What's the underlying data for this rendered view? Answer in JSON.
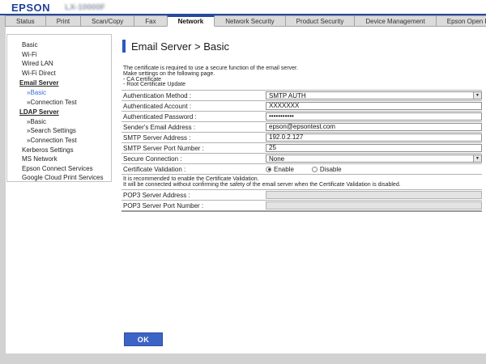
{
  "window": {
    "brand": "EPSON",
    "model": "LX-10000F"
  },
  "tabs": {
    "items": [
      {
        "label": "Status",
        "active": false
      },
      {
        "label": "Print",
        "active": false
      },
      {
        "label": "Scan/Copy",
        "active": false
      },
      {
        "label": "Fax",
        "active": false
      },
      {
        "label": "Network",
        "active": true
      },
      {
        "label": "Network Security",
        "active": false
      },
      {
        "label": "Product Security",
        "active": false
      },
      {
        "label": "Device Management",
        "active": false
      },
      {
        "label": "Epson Open Platform",
        "active": false
      }
    ]
  },
  "sidebar": {
    "items": [
      {
        "label": "Basic",
        "type": "link",
        "active": false
      },
      {
        "label": "Wi-Fi",
        "type": "link",
        "active": false
      },
      {
        "label": "Wired LAN",
        "type": "link",
        "active": false
      },
      {
        "label": "Wi-Fi Direct",
        "type": "link",
        "active": false
      },
      {
        "label": "Email Server",
        "type": "section",
        "active": false
      },
      {
        "label": "»Basic",
        "type": "sublink",
        "active": true
      },
      {
        "label": "»Connection Test",
        "type": "sublink",
        "active": false
      },
      {
        "label": "LDAP Server",
        "type": "section",
        "active": false
      },
      {
        "label": "»Basic",
        "type": "sublink",
        "active": false
      },
      {
        "label": "»Search Settings",
        "type": "sublink",
        "active": false
      },
      {
        "label": "»Connection Test",
        "type": "sublink",
        "active": false
      },
      {
        "label": "Kerberos Settings",
        "type": "link",
        "active": false
      },
      {
        "label": "MS Network",
        "type": "link",
        "active": false
      },
      {
        "label": "Epson Connect Services",
        "type": "link",
        "active": false
      },
      {
        "label": "Google Cloud Print Services",
        "type": "link",
        "active": false
      }
    ]
  },
  "main": {
    "title": "Email Server > Basic",
    "description_lines": [
      "The certificate is required to use a secure function of the email server.",
      "Make settings on the following page.",
      "- CA Certificate",
      "- Root Certificate Update"
    ],
    "ok_label": "OK",
    "form": {
      "rows": [
        {
          "name": "authentication-method",
          "control": "select",
          "label": "Authentication Method :",
          "value": "SMTP AUTH"
        },
        {
          "name": "authenticated-account",
          "control": "text",
          "label": "Authenticated Account :",
          "value": "XXXXXXX"
        },
        {
          "name": "authenticated-password",
          "control": "text",
          "label": "Authenticated Password :",
          "value": "•••••••••••"
        },
        {
          "name": "senders-email-address",
          "control": "text",
          "label": "Sender's Email Address :",
          "value": "epson@epsontest.com"
        },
        {
          "name": "smtp-server-address",
          "control": "text",
          "label": "SMTP Server Address :",
          "value": "192.0.2.127"
        },
        {
          "name": "smtp-server-port-number",
          "control": "text",
          "label": "SMTP Server Port Number :",
          "value": "25"
        },
        {
          "name": "secure-connection",
          "control": "select",
          "label": "Secure Connection :",
          "value": "None"
        },
        {
          "name": "certificate-validation",
          "control": "radio",
          "label": "Certificate Validation :",
          "options": [
            {
              "label": "Enable",
              "selected": true
            },
            {
              "label": "Disable",
              "selected": false
            }
          ]
        },
        {
          "name": "certificate-validation-note",
          "control": "note",
          "lines": [
            "It is recommended to enable the Certificate Validation.",
            "It will be connected without confirming the safety of the email server when the Certificate Validation is disabled."
          ]
        },
        {
          "name": "pop3-server-address",
          "control": "text",
          "label": "POP3 Server Address :",
          "value": "",
          "disabled": true
        },
        {
          "name": "pop3-server-port-number",
          "control": "text",
          "label": "POP3 Server Port Number :",
          "value": "",
          "disabled": true
        }
      ]
    }
  }
}
